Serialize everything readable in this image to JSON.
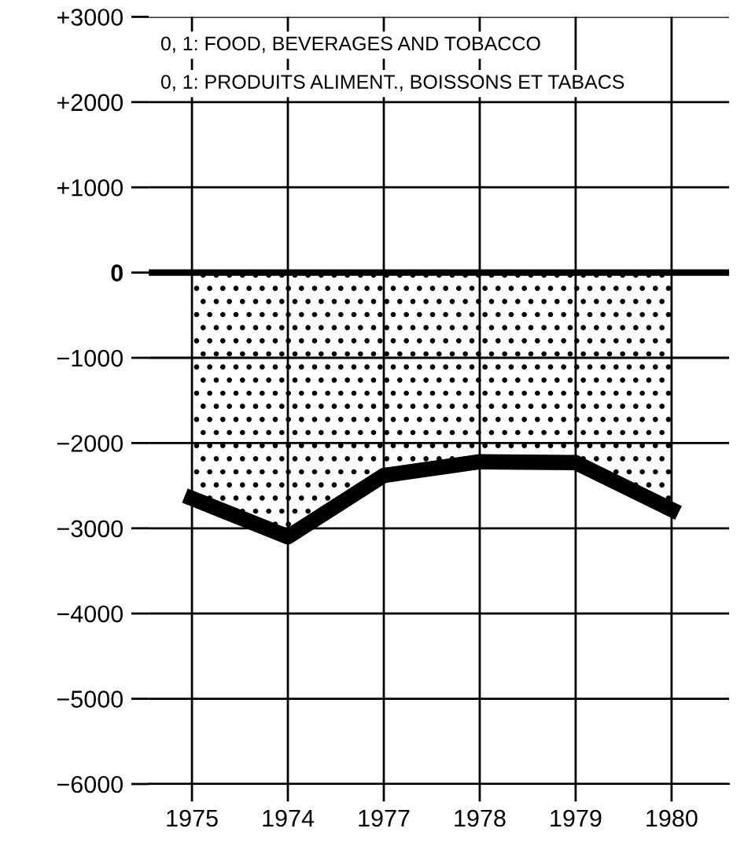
{
  "chart_data": {
    "type": "area",
    "categories": [
      "1975",
      "1974",
      "1977",
      "1978",
      "1979",
      "1980"
    ],
    "series": [
      {
        "color": "#000000",
        "values": [
          -2650,
          -3100,
          -2380,
          -2220,
          -2230,
          -2780
        ]
      }
    ],
    "ylim": [
      -6000,
      3000
    ],
    "yticks": [
      {
        "value": 3000,
        "label": "+3000"
      },
      {
        "value": 2000,
        "label": "+2000"
      },
      {
        "value": 1000,
        "label": "+1000"
      },
      0,
      {
        "value": -1000,
        "label": "−1000"
      },
      {
        "value": -2000,
        "label": "−2000"
      },
      {
        "value": -3000,
        "label": "−3000"
      },
      {
        "value": -4000,
        "label": "−4000"
      },
      {
        "value": -5000,
        "label": "−5000"
      },
      {
        "value": -6000,
        "label": "−6000"
      }
    ],
    "grid": true,
    "ref_lines": [
      {
        "axis": "y",
        "value": 0
      }
    ],
    "annotations": [
      "0, 1: FOOD, BEVERAGES AND TOBACCO",
      "0, 1: PRODUITS ALIMENT., BOISSONS ET TABACS"
    ]
  }
}
